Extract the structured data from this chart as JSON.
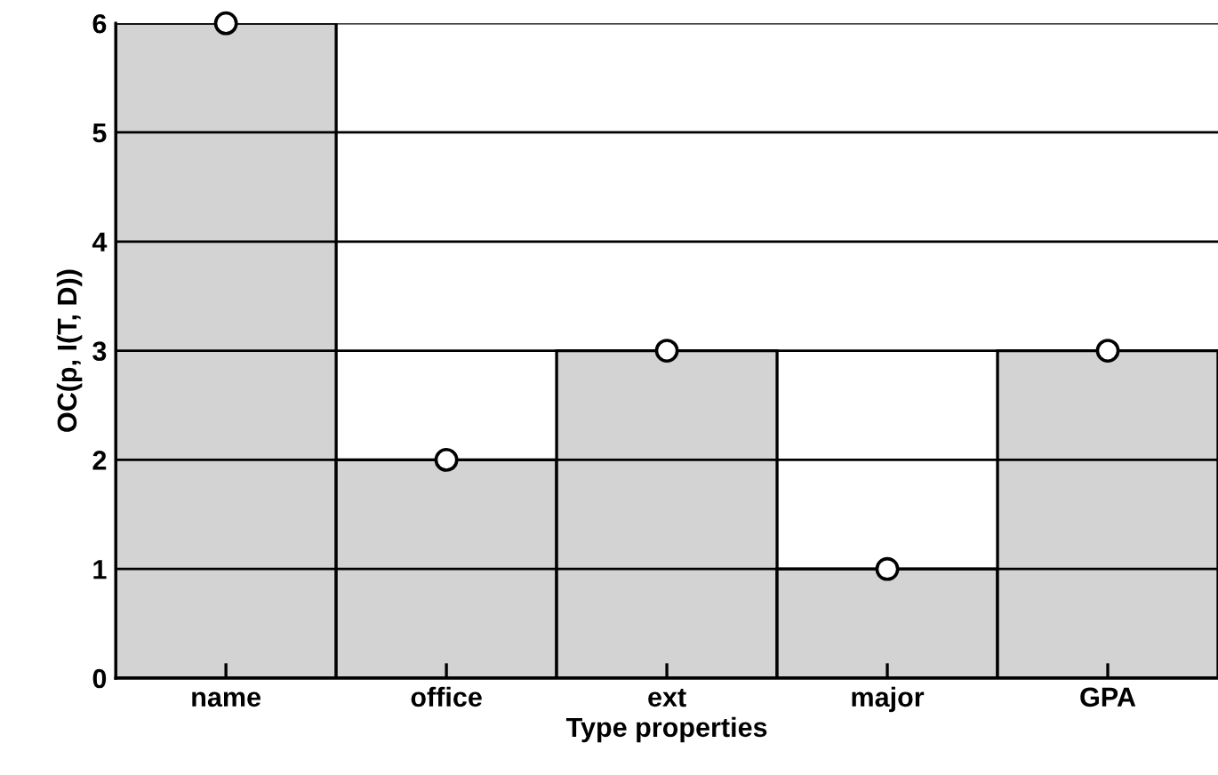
{
  "chart_data": {
    "type": "bar",
    "categories": [
      "name",
      "office",
      "ext",
      "major",
      "GPA"
    ],
    "series": [
      {
        "color": "#d3d3d3",
        "values": [
          6,
          2,
          3,
          1,
          3
        ]
      },
      {
        "type": "scatter",
        "color": "#ffffff",
        "x": [
          "name",
          "office",
          "ext",
          "major",
          "GPA"
        ],
        "values": [
          6,
          2,
          3,
          1,
          3
        ]
      }
    ],
    "marker": "circle",
    "xlabel": "Type properties",
    "ylabel": "OC(p, I(T, D))",
    "ylim": [
      0,
      6
    ],
    "yticks": [
      0,
      1,
      2,
      3,
      4,
      5,
      6
    ],
    "grid": "y"
  }
}
